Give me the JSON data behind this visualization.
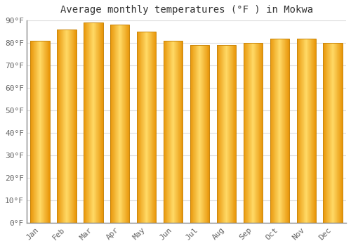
{
  "months": [
    "Jan",
    "Feb",
    "Mar",
    "Apr",
    "May",
    "Jun",
    "Jul",
    "Aug",
    "Sep",
    "Oct",
    "Nov",
    "Dec"
  ],
  "values": [
    81,
    86,
    89,
    88,
    85,
    81,
    79,
    79,
    80,
    82,
    82,
    80
  ],
  "title": "Average monthly temperatures (°F ) in Mokwa",
  "ylim": [
    0,
    90
  ],
  "yticks": [
    0,
    10,
    20,
    30,
    40,
    50,
    60,
    70,
    80,
    90
  ],
  "ytick_labels": [
    "0°F",
    "10°F",
    "20°F",
    "30°F",
    "40°F",
    "50°F",
    "60°F",
    "70°F",
    "80°F",
    "90°F"
  ],
  "bar_color_center": "#FFD966",
  "bar_color_edge": "#E8960A",
  "background_color": "#FFFFFF",
  "grid_color": "#DDDDDD",
  "title_fontsize": 10,
  "tick_fontsize": 8,
  "font_family": "monospace",
  "bar_width": 0.72
}
